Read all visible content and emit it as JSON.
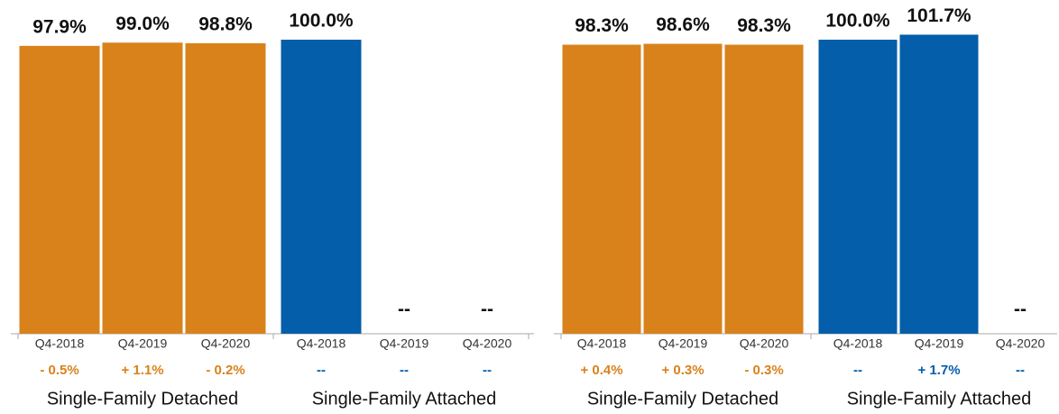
{
  "chart_data": [
    {
      "type": "bar",
      "series": [
        {
          "name": "Single-Family Detached",
          "color": "#d9821b",
          "categories": [
            "Q4-2018",
            "Q4-2019",
            "Q4-2020"
          ],
          "values": [
            97.9,
            99.0,
            98.8
          ],
          "value_labels": [
            "97.9%",
            "99.0%",
            "98.8%"
          ],
          "change_labels": [
            "- 0.5%",
            "+ 1.1%",
            "- 0.2%"
          ]
        },
        {
          "name": "Single-Family Attached",
          "color": "#045ea9",
          "categories": [
            "Q4-2018",
            "Q4-2019",
            "Q4-2020"
          ],
          "values": [
            100.0,
            null,
            null
          ],
          "value_labels": [
            "100.0%",
            "--",
            "--"
          ],
          "change_labels": [
            "--",
            "--",
            "--"
          ]
        }
      ]
    },
    {
      "type": "bar",
      "series": [
        {
          "name": "Single-Family Detached",
          "color": "#d9821b",
          "categories": [
            "Q4-2018",
            "Q4-2019",
            "Q4-2020"
          ],
          "values": [
            98.3,
            98.6,
            98.3
          ],
          "value_labels": [
            "98.3%",
            "98.6%",
            "98.3%"
          ],
          "change_labels": [
            "+ 0.4%",
            "+ 0.3%",
            "- 0.3%"
          ]
        },
        {
          "name": "Single-Family Attached",
          "color": "#045ea9",
          "categories": [
            "Q4-2018",
            "Q4-2019",
            "Q4-2020"
          ],
          "values": [
            100.0,
            101.7,
            null
          ],
          "value_labels": [
            "100.0%",
            "101.7%",
            "--"
          ],
          "change_labels": [
            "--",
            "+ 1.7%",
            "--"
          ]
        }
      ]
    }
  ]
}
